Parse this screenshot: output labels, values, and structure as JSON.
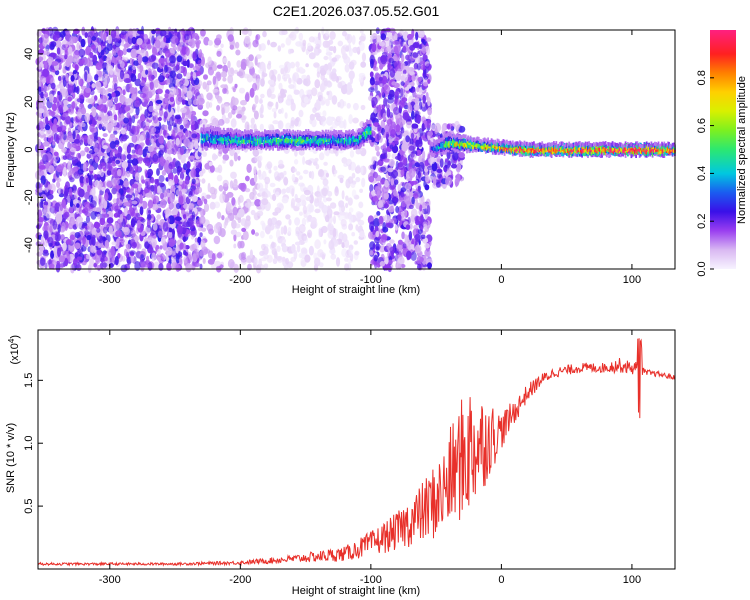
{
  "title": "C2E1.2026.037.05.52.G01",
  "chart_data": [
    {
      "type": "heatmap",
      "xlabel": "Height of straight line (km)",
      "ylabel": "Frequency (Hz)",
      "xlim": [
        -355,
        133
      ],
      "ylim": [
        -50,
        50
      ],
      "x_ticks": [
        -300,
        -200,
        -100,
        0,
        100
      ],
      "y_ticks": [
        -40,
        -20,
        0,
        20,
        40
      ],
      "colorbar": {
        "label": "Normalized spectral amplitude",
        "range": [
          0,
          1
        ],
        "ticks": [
          0.0,
          0.2,
          0.4,
          0.6,
          0.8
        ],
        "tick_labels": [
          "0.0",
          "0.2",
          "0.4",
          "0.6",
          "0.8"
        ]
      },
      "regions": [
        {
          "x_range": [
            -355,
            -230
          ],
          "freq_range": [
            -50,
            50
          ],
          "level": 0.15
        },
        {
          "x_range": [
            -230,
            -185
          ],
          "freq_range": [
            -50,
            50
          ],
          "level": 0.08
        },
        {
          "x_range": [
            -185,
            -105
          ],
          "freq_range": [
            -50,
            50
          ],
          "level": 0.03
        },
        {
          "x_range": [
            -100,
            -55
          ],
          "freq_range": [
            -50,
            50
          ],
          "level": 0.15
        },
        {
          "x_range": [
            -55,
            -30
          ],
          "freq_range": [
            -15,
            10
          ],
          "level": 0.15
        }
      ],
      "band": {
        "x": [
          -230,
          -200,
          -150,
          -110,
          -102,
          -55,
          -40,
          -20,
          0,
          20,
          60,
          100,
          133
        ],
        "center": [
          5,
          4,
          4,
          4,
          8,
          0,
          3,
          2,
          1,
          0,
          0,
          0,
          0
        ],
        "halfwidth": [
          4,
          3,
          3,
          3,
          4,
          2,
          3,
          2,
          2,
          2,
          2,
          2,
          2
        ],
        "peak": [
          0.4,
          0.45,
          0.5,
          0.4,
          0.5,
          0.2,
          0.6,
          0.7,
          0.8,
          0.9,
          0.9,
          1.0,
          0.9
        ]
      }
    },
    {
      "type": "line",
      "xlabel": "Height of straight line (km)",
      "ylabel": "SNR (10 * v/v)",
      "y_scale_label": "(x10",
      "y_scale_exp": "4",
      "y_scale_close": ")",
      "xlim": [
        -355,
        133
      ],
      "ylim": [
        0,
        1.9
      ],
      "x_ticks": [
        -300,
        -200,
        -100,
        0,
        100
      ],
      "y_ticks": [
        0.5,
        1.0,
        1.5
      ],
      "y_tick_labels": [
        "0.5",
        "1.0",
        "1.5"
      ],
      "color": "#e8302a",
      "series": [
        {
          "x": [
            -355,
            -300,
            -250,
            -200,
            -160,
            -120,
            -100,
            -80,
            -60,
            -45,
            -35,
            -25,
            -15,
            0,
            10,
            20,
            30,
            40,
            60,
            80,
            90,
            100,
            105,
            110,
            120,
            133
          ],
          "y": [
            0.04,
            0.04,
            0.04,
            0.05,
            0.08,
            0.12,
            0.2,
            0.3,
            0.45,
            0.6,
            0.8,
            0.95,
            1.0,
            1.1,
            1.25,
            1.4,
            1.5,
            1.56,
            1.6,
            1.6,
            1.62,
            1.6,
            1.58,
            1.56,
            1.55,
            1.52
          ],
          "noise": [
            0.01,
            0.01,
            0.01,
            0.015,
            0.03,
            0.06,
            0.1,
            0.15,
            0.25,
            0.35,
            0.45,
            0.55,
            0.4,
            0.15,
            0.1,
            0.07,
            0.05,
            0.04,
            0.04,
            0.04,
            0.06,
            0.05,
            0.08,
            0.03,
            0.02,
            0.02
          ]
        }
      ]
    }
  ]
}
